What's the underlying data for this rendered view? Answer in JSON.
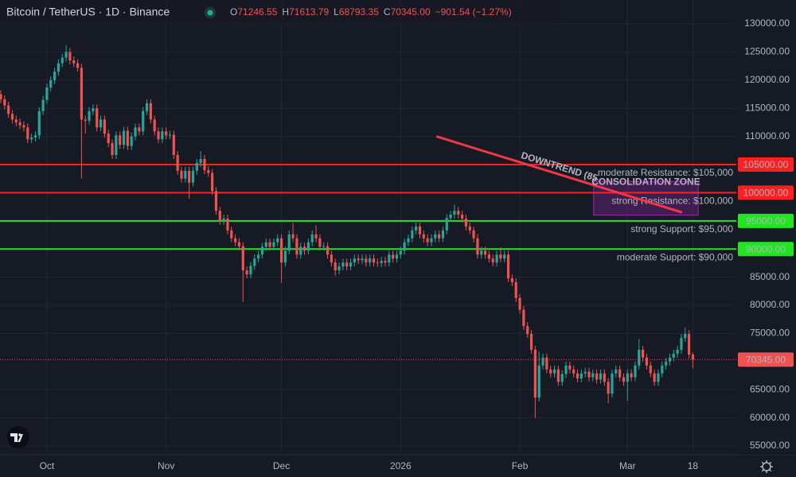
{
  "chart_data": {
    "type": "candlestick",
    "title": "Bitcoin / TetherUS · 1D · Binance",
    "ohlc_legend": [
      {
        "key": "O",
        "value": "71246.55"
      },
      {
        "key": "H",
        "value": "71613.79"
      },
      {
        "key": "L",
        "value": "68793.35"
      },
      {
        "key": "C",
        "value": "70345.00"
      }
    ],
    "change": "−901.54 (−1.27%)",
    "up_color": "#26a69a",
    "down_color": "#ef5350",
    "grid": true,
    "xlim": [
      -0.2,
      191.3
    ],
    "ylim": [
      53730,
      134240
    ],
    "xticks": [
      {
        "value": 12,
        "label": "Oct"
      },
      {
        "value": 43,
        "label": "Nov"
      },
      {
        "value": 73,
        "label": "Dec"
      },
      {
        "value": 104,
        "label": "2026"
      },
      {
        "value": 135,
        "label": "Feb"
      },
      {
        "value": 163,
        "label": "Mar"
      },
      {
        "value": 180,
        "label": "18"
      }
    ],
    "yticks": [
      {
        "value": 130000,
        "label": "130000.00"
      },
      {
        "value": 125000,
        "label": "125000.00"
      },
      {
        "value": 120000,
        "label": "120000.00"
      },
      {
        "value": 115000,
        "label": "115000.00"
      },
      {
        "value": 110000,
        "label": "110000.00"
      },
      {
        "value": 85000,
        "label": "85000.00"
      },
      {
        "value": 80000,
        "label": "80000.00"
      },
      {
        "value": 75000,
        "label": "75000.00"
      },
      {
        "value": 65000,
        "label": "65000.00"
      },
      {
        "value": 60000,
        "label": "60000.00"
      },
      {
        "value": 55000,
        "label": "55000.00"
      }
    ],
    "open": [
      117500,
      116600,
      115500,
      114000,
      113000,
      112500,
      112000,
      111600,
      109500,
      109800,
      110200,
      114500,
      116500,
      118700,
      120000,
      121500,
      123000,
      124000,
      125000,
      123500,
      123000,
      122200,
      113000,
      112800,
      114500,
      115000,
      111600,
      113000,
      110500,
      108800,
      106700,
      110200,
      108500,
      111000,
      108300,
      110000,
      111600,
      110900,
      114500,
      115900,
      113000,
      110900,
      109500,
      110900,
      110200,
      110300,
      106700,
      103900,
      102500,
      103900,
      101800,
      103900,
      105300,
      106000,
      104000,
      103500,
      100300,
      96800,
      95000,
      95400,
      93300,
      91900,
      91200,
      90500,
      86200,
      85500,
      87000,
      88300,
      89000,
      90400,
      91200,
      90400,
      91200,
      91900,
      87600,
      89700,
      92600,
      91900,
      89000,
      90400,
      89700,
      91200,
      92600,
      91900,
      90400,
      90500,
      89000,
      87600,
      86200,
      86900,
      87600,
      86900,
      87600,
      88300,
      88000,
      88300,
      87600,
      88300,
      87600,
      87500,
      87900,
      87600,
      89000,
      88300,
      89000,
      89700,
      91200,
      91900,
      93300,
      94000,
      92600,
      91900,
      91200,
      91900,
      92600,
      91900,
      93300,
      95500,
      96100,
      96800,
      96100,
      95400,
      94000,
      93300,
      91900,
      89000,
      89700,
      89000,
      88300,
      87600,
      89000,
      88300,
      89000,
      84800,
      84100,
      81300,
      79200,
      76300,
      74900,
      72100,
      63600,
      69300,
      70700,
      68600,
      67900,
      68600,
      66400,
      67800,
      69300,
      68600,
      67900,
      67000,
      67900,
      68200,
      67200,
      67900,
      66800,
      67900,
      66400,
      64300,
      67900,
      68600,
      67200,
      66400,
      67900,
      67200,
      69300,
      72100,
      70700,
      69300,
      67900,
      66400,
      67900,
      69300,
      70000,
      70700,
      71400,
      72100,
      74200,
      74900,
      71246.55
    ],
    "high": [
      118200,
      117300,
      116200,
      114700,
      113700,
      113200,
      112700,
      112300,
      110500,
      110900,
      115200,
      117200,
      119400,
      120700,
      122200,
      123700,
      124700,
      126200,
      125700,
      124200,
      123700,
      122900,
      113700,
      115200,
      115700,
      115700,
      113700,
      113700,
      111200,
      109500,
      110900,
      110900,
      111700,
      111700,
      110700,
      112300,
      112300,
      115200,
      116600,
      116600,
      113700,
      111600,
      111600,
      111600,
      111000,
      111000,
      107400,
      104600,
      104600,
      104600,
      104600,
      106000,
      107400,
      106700,
      104700,
      104200,
      101000,
      97500,
      96100,
      96100,
      94000,
      92600,
      91900,
      91200,
      86900,
      87700,
      89000,
      89700,
      91100,
      91900,
      91900,
      91900,
      92600,
      92600,
      90400,
      93300,
      94600,
      92600,
      91100,
      91100,
      91900,
      93300,
      94200,
      92600,
      91200,
      91200,
      89700,
      88300,
      87600,
      88300,
      88300,
      88300,
      89000,
      89000,
      89000,
      89000,
      89000,
      89000,
      88300,
      88600,
      88600,
      89700,
      89700,
      89700,
      90400,
      91900,
      92600,
      94000,
      94700,
      94700,
      93300,
      92600,
      92600,
      93300,
      93300,
      94000,
      96200,
      96800,
      97900,
      97500,
      96800,
      96100,
      94700,
      94000,
      92600,
      90400,
      90400,
      89700,
      89000,
      89700,
      90300,
      89700,
      89700,
      85500,
      84800,
      82000,
      79900,
      77000,
      75600,
      72800,
      71800,
      71400,
      71400,
      69300,
      69300,
      69300,
      68500,
      70000,
      70000,
      69300,
      68600,
      68600,
      68900,
      68900,
      68600,
      68600,
      68600,
      68600,
      67100,
      68600,
      69300,
      69300,
      67900,
      68600,
      68600,
      70000,
      74000,
      72800,
      71400,
      70000,
      68600,
      68600,
      70000,
      70700,
      71400,
      72100,
      72800,
      74900,
      76000,
      75600,
      71613.79
    ],
    "low": [
      115900,
      114800,
      113300,
      112300,
      111800,
      111300,
      110900,
      108800,
      108800,
      109100,
      109500,
      113800,
      115800,
      118000,
      119300,
      120800,
      122300,
      123300,
      122800,
      122300,
      121500,
      102500,
      110500,
      112100,
      113800,
      110900,
      110900,
      109800,
      108100,
      106000,
      106000,
      107800,
      107800,
      107600,
      107600,
      109300,
      110200,
      110200,
      113800,
      112300,
      110200,
      108800,
      108800,
      109500,
      109500,
      106000,
      103200,
      101800,
      101800,
      98900,
      101100,
      103200,
      104600,
      103300,
      102800,
      99600,
      96100,
      94300,
      94300,
      92600,
      91200,
      90500,
      89800,
      80600,
      84800,
      84800,
      86300,
      87600,
      88300,
      89700,
      89700,
      89700,
      90500,
      84000,
      86900,
      89000,
      91200,
      88300,
      88300,
      89000,
      89000,
      90500,
      91200,
      89700,
      89700,
      88300,
      86900,
      85300,
      85500,
      86200,
      86200,
      86200,
      86900,
      87300,
      87300,
      86900,
      86900,
      86900,
      86800,
      86800,
      86900,
      86900,
      87600,
      87600,
      88300,
      89000,
      90500,
      91200,
      92600,
      91900,
      91200,
      90500,
      90500,
      91200,
      91200,
      91200,
      92600,
      94800,
      95400,
      95400,
      94700,
      93300,
      92600,
      91200,
      88300,
      88300,
      88300,
      87600,
      86900,
      86900,
      87600,
      87600,
      84100,
      83400,
      80600,
      78500,
      75600,
      74200,
      71400,
      60000,
      62900,
      68600,
      67900,
      67200,
      67200,
      65700,
      65700,
      67100,
      67900,
      67200,
      66300,
      66300,
      67200,
      66500,
      66500,
      66100,
      66100,
      65700,
      62600,
      63600,
      67200,
      66500,
      65700,
      63000,
      66500,
      66500,
      68600,
      70000,
      68600,
      67200,
      65700,
      65700,
      67200,
      68600,
      69300,
      70000,
      70700,
      71400,
      73500,
      70500,
      68793.35
    ],
    "close": [
      116600,
      115500,
      114000,
      113000,
      112500,
      112000,
      111600,
      109500,
      109800,
      110200,
      114500,
      116500,
      118700,
      120000,
      121500,
      123000,
      124000,
      125000,
      123500,
      123000,
      122200,
      113000,
      112800,
      114500,
      115000,
      111600,
      113000,
      110500,
      108800,
      106700,
      110200,
      108500,
      111000,
      108300,
      110000,
      111600,
      110900,
      114500,
      115900,
      113000,
      110900,
      109500,
      110900,
      110200,
      110300,
      106700,
      103900,
      102500,
      103900,
      101800,
      103900,
      105300,
      106000,
      104000,
      103500,
      100300,
      96800,
      95000,
      95400,
      93300,
      91900,
      91200,
      90500,
      86200,
      85500,
      87000,
      88300,
      89000,
      90400,
      91200,
      90400,
      91200,
      91900,
      87600,
      89700,
      92600,
      91900,
      89000,
      90400,
      89700,
      91200,
      92600,
      91900,
      90400,
      90500,
      89000,
      87600,
      86200,
      86900,
      87600,
      86900,
      87600,
      88300,
      88000,
      88300,
      87600,
      88300,
      87600,
      87500,
      87900,
      87600,
      89000,
      88300,
      89000,
      89700,
      91200,
      91900,
      93300,
      94000,
      92600,
      91900,
      91200,
      91900,
      92600,
      91900,
      93300,
      95500,
      96100,
      96800,
      96100,
      95400,
      94000,
      93300,
      91900,
      89000,
      89700,
      89000,
      88300,
      87600,
      89000,
      88300,
      89000,
      84800,
      84100,
      81300,
      79200,
      76300,
      74900,
      72100,
      63600,
      69300,
      70700,
      68600,
      67900,
      68600,
      66400,
      67800,
      69300,
      68600,
      67900,
      67000,
      67900,
      68200,
      67200,
      67900,
      66800,
      67900,
      66400,
      64300,
      67900,
      68600,
      67200,
      66400,
      67900,
      67200,
      69300,
      72100,
      70700,
      69300,
      67900,
      66400,
      67900,
      69300,
      70000,
      70700,
      71400,
      72100,
      74200,
      74900,
      71246.55,
      70345
    ],
    "hlines": [
      {
        "value": 105000,
        "color": "#ff1f1f",
        "label": "moderate Resistance: $105,000",
        "tag": "105000.00"
      },
      {
        "value": 100000,
        "color": "#ff1f1f",
        "label": "strong Resistance: $100,000",
        "tag": "100000.00"
      },
      {
        "value": 95000,
        "color": "#22e522",
        "label": "strong Support: $95,000",
        "tag": "95000.00"
      },
      {
        "value": 90000,
        "color": "#22e522",
        "label": "moderate Support: $90,000",
        "tag": "90000.00"
      }
    ],
    "trendline": {
      "x": [
        113.3,
        177.2
      ],
      "y": [
        110000,
        96500
      ],
      "color": "#f23645",
      "label": "DOWNTREND (85"
    },
    "zone": {
      "x": [
        154.2,
        181.4
      ],
      "y": [
        96000,
        102000
      ],
      "color": "#9c27b0",
      "label": "CONSOLIDATION ZONE",
      "label_color": "#ffeb3b"
    },
    "last_price": {
      "value": 70345,
      "label": "70345.00",
      "color": "#ef5350"
    }
  }
}
